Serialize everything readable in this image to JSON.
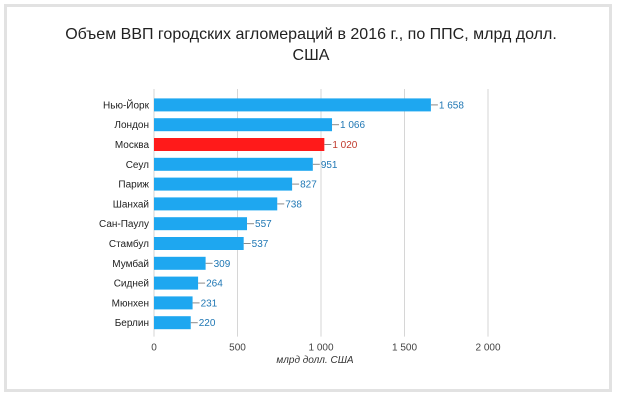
{
  "chart_data": {
    "type": "bar",
    "orientation": "horizontal",
    "title_line1": "Объем ВВП городских агломераций в 2016 г., по ППС, млрд долл.",
    "title_line2": "США",
    "xlabel": "млрд долл. США",
    "ylabel": "",
    "xlim": [
      0,
      2000
    ],
    "xticks": [
      0,
      500,
      1000,
      1500,
      2000
    ],
    "xtick_labels": [
      "0",
      "500",
      "1 000",
      "1 500",
      "2 000"
    ],
    "grid": "vertical",
    "legend": "none",
    "categories": [
      "Нью-Йорк",
      "Лондон",
      "Москва",
      "Сеул",
      "Париж",
      "Шанхай",
      "Сан-Паулу",
      "Стамбул",
      "Мумбай",
      "Сидней",
      "Мюнхен",
      "Берлин"
    ],
    "values": [
      1658,
      1066,
      1020,
      951,
      827,
      738,
      557,
      537,
      309,
      264,
      231,
      220
    ],
    "value_labels": [
      "1 658",
      "1 066",
      "1 020",
      "951",
      "827",
      "738",
      "557",
      "537",
      "309",
      "264",
      "231",
      "220"
    ],
    "highlight_category": "Москва",
    "colors": {
      "bar": "#1ea7f0",
      "highlight": "#ff1a1a",
      "label": "#1f77b4",
      "highlight_label": "#c0392b",
      "grid": "#d6d6d6"
    }
  }
}
